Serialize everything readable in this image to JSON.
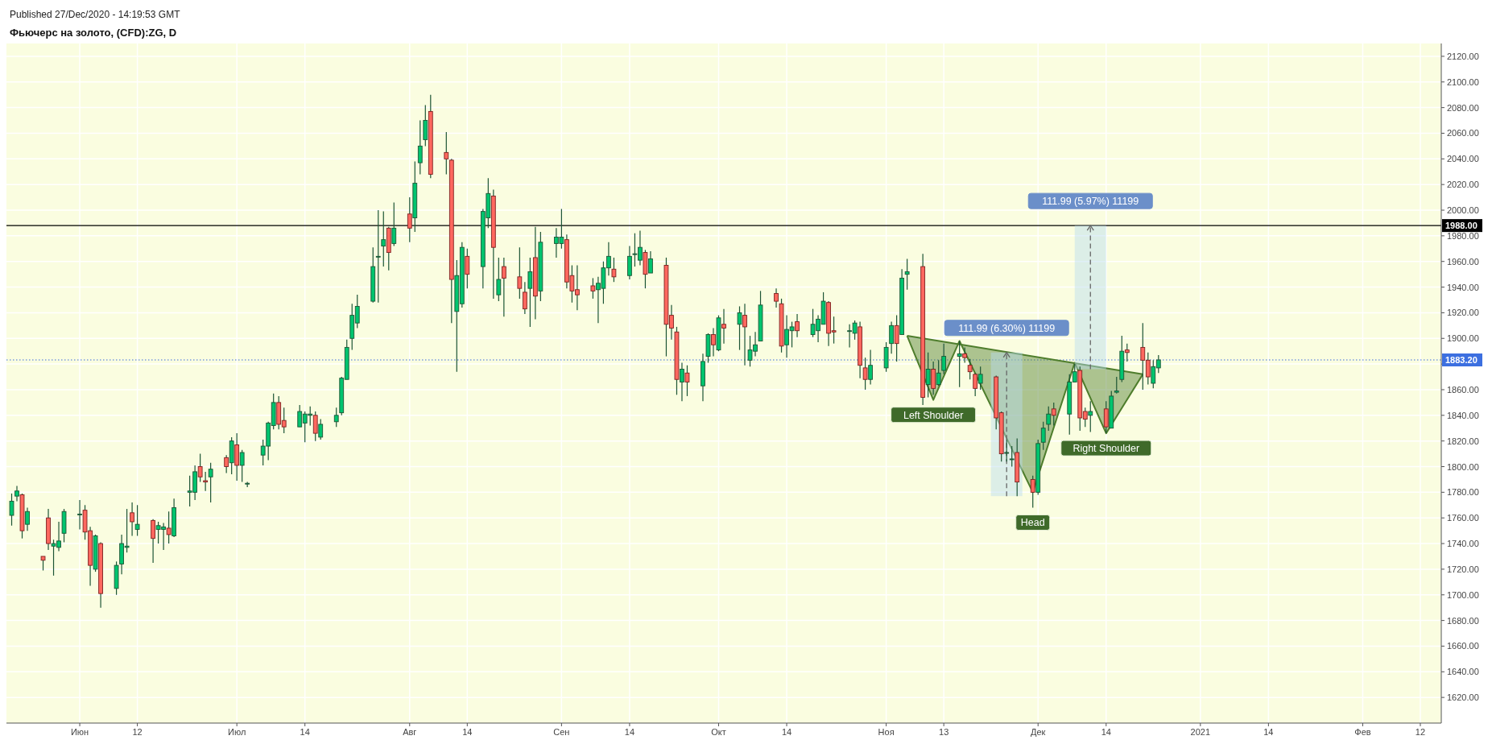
{
  "chart_data": {
    "type": "candlestick",
    "title": "Фьючерс на золото, (CFD):ZG, D",
    "annotations": [
      "Published 27/Dec/2020 - 14:19:53 GMT",
      {
        "text": "Left Shoulder",
        "x": "2020-11-11",
        "y": 1852
      },
      {
        "text": "Head",
        "x": "2020-11-30",
        "y": 1768
      },
      {
        "text": "Right Shoulder",
        "x": "2020-12-14",
        "y": 1826
      },
      {
        "text": "111.99 (6.30%) 11199",
        "x": "2020-11-25",
        "y": 1889
      },
      {
        "text": "111.99 (5.97%) 11199",
        "x": "2020-12-11",
        "y": 1988
      }
    ],
    "x": [
      "2020-05-19",
      "2020-05-20",
      "2020-05-21",
      "2020-05-22",
      "2020-05-25",
      "2020-05-26",
      "2020-05-27",
      "2020-05-28",
      "2020-05-29",
      "2020-06-01",
      "2020-06-02",
      "2020-06-03",
      "2020-06-04",
      "2020-06-05",
      "2020-06-08",
      "2020-06-09",
      "2020-06-10",
      "2020-06-11",
      "2020-06-12",
      "2020-06-15",
      "2020-06-16",
      "2020-06-17",
      "2020-06-18",
      "2020-06-19",
      "2020-06-22",
      "2020-06-23",
      "2020-06-24",
      "2020-06-25",
      "2020-06-26",
      "2020-06-29",
      "2020-06-30",
      "2020-07-01",
      "2020-07-02",
      "2020-07-03",
      "2020-07-06",
      "2020-07-07",
      "2020-07-08",
      "2020-07-09",
      "2020-07-10",
      "2020-07-13",
      "2020-07-14",
      "2020-07-15",
      "2020-07-16",
      "2020-07-17",
      "2020-07-20",
      "2020-07-21",
      "2020-07-22",
      "2020-07-23",
      "2020-07-24",
      "2020-07-27",
      "2020-07-28",
      "2020-07-29",
      "2020-07-30",
      "2020-07-31",
      "2020-08-03",
      "2020-08-04",
      "2020-08-05",
      "2020-08-06",
      "2020-08-07",
      "2020-08-10",
      "2020-08-11",
      "2020-08-12",
      "2020-08-13",
      "2020-08-14",
      "2020-08-17",
      "2020-08-18",
      "2020-08-19",
      "2020-08-20",
      "2020-08-21",
      "2020-08-24",
      "2020-08-25",
      "2020-08-26",
      "2020-08-27",
      "2020-08-28",
      "2020-08-31",
      "2020-09-01",
      "2020-09-02",
      "2020-09-03",
      "2020-09-04",
      "2020-09-07",
      "2020-09-08",
      "2020-09-09",
      "2020-09-10",
      "2020-09-11",
      "2020-09-14",
      "2020-09-15",
      "2020-09-16",
      "2020-09-17",
      "2020-09-18",
      "2020-09-21",
      "2020-09-22",
      "2020-09-23",
      "2020-09-24",
      "2020-09-25",
      "2020-09-28",
      "2020-09-29",
      "2020-09-30",
      "2020-10-01",
      "2020-10-02",
      "2020-10-05",
      "2020-10-06",
      "2020-10-07",
      "2020-10-08",
      "2020-10-09",
      "2020-10-12",
      "2020-10-13",
      "2020-10-14",
      "2020-10-15",
      "2020-10-16",
      "2020-10-19",
      "2020-10-20",
      "2020-10-21",
      "2020-10-22",
      "2020-10-23",
      "2020-10-26",
      "2020-10-27",
      "2020-10-28",
      "2020-10-29",
      "2020-10-30",
      "2020-11-02",
      "2020-11-03",
      "2020-11-04",
      "2020-11-05",
      "2020-11-06",
      "2020-11-09",
      "2020-11-10",
      "2020-11-11",
      "2020-11-12",
      "2020-11-13",
      "2020-11-16",
      "2020-11-17",
      "2020-11-18",
      "2020-11-19",
      "2020-11-20",
      "2020-11-23",
      "2020-11-24",
      "2020-11-25",
      "2020-11-26",
      "2020-11-27",
      "2020-11-30",
      "2020-12-01",
      "2020-12-02",
      "2020-12-03",
      "2020-12-04",
      "2020-12-07",
      "2020-12-08",
      "2020-12-09",
      "2020-12-10",
      "2020-12-11",
      "2020-12-14",
      "2020-12-15",
      "2020-12-16",
      "2020-12-17",
      "2020-12-18",
      "2020-12-21",
      "2020-12-22",
      "2020-12-23",
      "2020-12-24"
    ],
    "ohlc": [
      [
        1762,
        1779,
        1754,
        1773
      ],
      [
        1777,
        1785,
        1773,
        1781
      ],
      [
        1778,
        1779,
        1744,
        1750
      ],
      [
        1755,
        1768,
        1750,
        1765
      ],
      [
        1730,
        1730,
        1719,
        1727
      ],
      [
        1760,
        1767,
        1735,
        1740
      ],
      [
        1738,
        1743,
        1715,
        1740
      ],
      [
        1737,
        1757,
        1734,
        1742
      ],
      [
        1748,
        1767,
        1741,
        1765
      ],
      [
        1763,
        1774,
        1751,
        1763
      ],
      [
        1766,
        1770,
        1743,
        1749
      ],
      [
        1750,
        1753,
        1707,
        1723
      ],
      [
        1720,
        1747,
        1718,
        1746
      ],
      [
        1740,
        1741,
        1690,
        1701
      ],
      [
        1705,
        1726,
        1700,
        1723
      ],
      [
        1724,
        1747,
        1716,
        1740
      ],
      [
        1737,
        1767,
        1733,
        1738
      ],
      [
        1764,
        1772,
        1746,
        1757
      ],
      [
        1751,
        1770,
        1746,
        1755
      ],
      [
        1758,
        1759,
        1725,
        1744
      ],
      [
        1751,
        1757,
        1740,
        1754
      ],
      [
        1751,
        1756,
        1735,
        1753
      ],
      [
        1752,
        1765,
        1740,
        1747
      ],
      [
        1746,
        1775,
        1745,
        1768
      ],
      [
        1780,
        1793,
        1769,
        1781
      ],
      [
        1780,
        1801,
        1774,
        1796
      ],
      [
        1800,
        1810,
        1788,
        1792
      ],
      [
        1789,
        1796,
        1781,
        1788
      ],
      [
        1792,
        1803,
        1772,
        1798
      ],
      [
        1807,
        1809,
        1795,
        1800
      ],
      [
        1803,
        1823,
        1794,
        1820
      ],
      [
        1817,
        1826,
        1789,
        1801
      ],
      [
        1801,
        1813,
        1788,
        1811
      ],
      [
        1787,
        1788,
        1784,
        1787
      ],
      [
        1809,
        1821,
        1801,
        1816
      ],
      [
        1816,
        1835,
        1805,
        1834
      ],
      [
        1832,
        1857,
        1829,
        1850
      ],
      [
        1850,
        1855,
        1829,
        1833
      ],
      [
        1836,
        1846,
        1826,
        1831
      ],
      [
        1831,
        1848,
        1831,
        1843
      ],
      [
        1834,
        1843,
        1819,
        1841
      ],
      [
        1840,
        1847,
        1832,
        1841
      ],
      [
        1840,
        1843,
        1820,
        1826
      ],
      [
        1823,
        1837,
        1821,
        1833
      ],
      [
        1835,
        1846,
        1831,
        1840
      ],
      [
        1842,
        1870,
        1840,
        1869
      ],
      [
        1868,
        1899,
        1868,
        1893
      ],
      [
        1900,
        1927,
        1891,
        1918
      ],
      [
        1912,
        1934,
        1908,
        1925
      ],
      [
        1929,
        1971,
        1928,
        1956
      ],
      [
        1964,
        2000,
        1928,
        1964
      ],
      [
        1972,
        1999,
        1956,
        1977
      ],
      [
        1986,
        1987,
        1953,
        1967
      ],
      [
        1974,
        2006,
        1972,
        1986
      ],
      [
        1997,
        2010,
        1975,
        1986
      ],
      [
        1994,
        2038,
        1983,
        2021
      ],
      [
        2037,
        2070,
        2028,
        2050
      ],
      [
        2055,
        2082,
        2050,
        2070
      ],
      [
        2077,
        2090,
        2025,
        2028
      ],
      [
        2045,
        2061,
        2028,
        2040
      ],
      [
        2039,
        2040,
        1912,
        1946
      ],
      [
        1921,
        1961,
        1874,
        1949
      ],
      [
        1927,
        1975,
        1924,
        1971
      ],
      [
        1964,
        1970,
        1939,
        1950
      ],
      [
        1956,
        2001,
        1939,
        1999
      ],
      [
        1994,
        2025,
        1986,
        2013
      ],
      [
        2011,
        2016,
        1931,
        1971
      ],
      [
        1934,
        1963,
        1929,
        1946
      ],
      [
        1956,
        1963,
        1917,
        1947
      ],
      [
        1948,
        1971,
        1931,
        1939
      ],
      [
        1936,
        1944,
        1919,
        1923
      ],
      [
        1939,
        1963,
        1909,
        1952
      ],
      [
        1963,
        1987,
        1915,
        1933
      ],
      [
        1937,
        1983,
        1929,
        1975
      ],
      [
        1974,
        1986,
        1963,
        1979
      ],
      [
        1974,
        2001,
        1970,
        1979
      ],
      [
        1977,
        1981,
        1939,
        1944
      ],
      [
        1949,
        1957,
        1928,
        1937
      ],
      [
        1938,
        1957,
        1922,
        1934
      ],
      [
        1941,
        1947,
        1931,
        1937
      ],
      [
        1938,
        1948,
        1912,
        1943
      ],
      [
        1939,
        1960,
        1927,
        1955
      ],
      [
        1955,
        1975,
        1949,
        1964
      ],
      [
        1954,
        1963,
        1944,
        1948
      ],
      [
        1949,
        1972,
        1946,
        1964
      ],
      [
        1966,
        1982,
        1956,
        1966
      ],
      [
        1961,
        1984,
        1957,
        1971
      ],
      [
        1967,
        1969,
        1939,
        1950
      ],
      [
        1951,
        1968,
        1951,
        1962
      ],
      [
        1957,
        1963,
        1886,
        1911
      ],
      [
        1918,
        1926,
        1899,
        1908
      ],
      [
        1905,
        1909,
        1856,
        1868
      ],
      [
        1866,
        1881,
        1851,
        1876
      ],
      [
        1873,
        1879,
        1855,
        1866
      ],
      [
        1863,
        1888,
        1851,
        1882
      ],
      [
        1886,
        1904,
        1881,
        1903
      ],
      [
        1903,
        1908,
        1886,
        1895
      ],
      [
        1891,
        1918,
        1890,
        1916
      ],
      [
        1911,
        1923,
        1896,
        1908
      ],
      [
        1911,
        1925,
        1891,
        1920
      ],
      [
        1918,
        1927,
        1879,
        1909
      ],
      [
        1883,
        1902,
        1878,
        1891
      ],
      [
        1890,
        1905,
        1886,
        1895
      ],
      [
        1898,
        1937,
        1898,
        1926
      ],
      [
        1935,
        1939,
        1924,
        1929
      ],
      [
        1927,
        1931,
        1889,
        1894
      ],
      [
        1895,
        1918,
        1885,
        1907
      ],
      [
        1906,
        1913,
        1893,
        1909
      ],
      [
        1913,
        1919,
        1901,
        1906
      ],
      [
        1903,
        1923,
        1901,
        1911
      ],
      [
        1906,
        1918,
        1897,
        1915
      ],
      [
        1911,
        1936,
        1911,
        1929
      ],
      [
        1928,
        1929,
        1894,
        1904
      ],
      [
        1906,
        1917,
        1896,
        1905
      ],
      [
        1906,
        1911,
        1893,
        1906
      ],
      [
        1904,
        1914,
        1899,
        1912
      ],
      [
        1909,
        1913,
        1869,
        1879
      ],
      [
        1877,
        1885,
        1860,
        1868
      ],
      [
        1868,
        1891,
        1864,
        1879
      ],
      [
        1877,
        1897,
        1874,
        1893
      ],
      [
        1896,
        1913,
        1888,
        1910
      ],
      [
        1910,
        1918,
        1882,
        1896
      ],
      [
        1903,
        1954,
        1903,
        1947
      ],
      [
        1950,
        1962,
        1938,
        1952
      ],
      [
        1956,
        1966,
        1848,
        1854
      ],
      [
        1864,
        1889,
        1854,
        1876
      ],
      [
        1876,
        1882,
        1856,
        1861
      ],
      [
        1864,
        1883,
        1863,
        1873
      ],
      [
        1875,
        1896,
        1872,
        1886
      ],
      [
        1886,
        1898,
        1862,
        1888
      ],
      [
        1888,
        1893,
        1881,
        1885
      ],
      [
        1879,
        1884,
        1868,
        1874
      ],
      [
        1872,
        1873,
        1855,
        1861
      ],
      [
        1865,
        1878,
        1860,
        1872
      ],
      [
        1870,
        1871,
        1829,
        1838
      ],
      [
        1842,
        1843,
        1804,
        1810
      ],
      [
        1811,
        1821,
        1804,
        1811
      ],
      [
        1806,
        1816,
        1800,
        1806
      ],
      [
        1811,
        1822,
        1777,
        1788
      ],
      [
        1790,
        1793,
        1768,
        1780
      ],
      [
        1780,
        1821,
        1778,
        1818
      ],
      [
        1819,
        1835,
        1813,
        1830
      ],
      [
        1833,
        1847,
        1828,
        1841
      ],
      [
        1845,
        1850,
        1832,
        1840
      ],
      [
        1841,
        1872,
        1825,
        1866
      ],
      [
        1866,
        1880,
        1866,
        1874
      ],
      [
        1875,
        1878,
        1828,
        1838
      ],
      [
        1843,
        1846,
        1831,
        1837
      ],
      [
        1840,
        1851,
        1827,
        1843
      ],
      [
        1845,
        1851,
        1826,
        1831
      ],
      [
        1830,
        1859,
        1830,
        1855
      ],
      [
        1858,
        1870,
        1857,
        1859
      ],
      [
        1868,
        1902,
        1866,
        1890
      ],
      [
        1891,
        1896,
        1882,
        1889
      ],
      [
        1893,
        1912,
        1860,
        1883
      ],
      [
        1883,
        1889,
        1864,
        1870
      ],
      [
        1865,
        1883,
        1861,
        1878
      ],
      [
        1877,
        1887,
        1873,
        1883.2
      ]
    ],
    "series": [
      {
        "type": "line",
        "color": "#4e7d2c",
        "x": [
          "2020-11-06",
          "2020-11-11",
          "2020-11-16",
          "2020-11-30",
          "2020-12-08",
          "2020-12-14",
          "2020-12-21"
        ],
        "values": [
          1902,
          1852,
          1898,
          1780,
          1881,
          1826,
          1872
        ]
      },
      {
        "type": "line",
        "color": "#666666",
        "line_style": "dashed",
        "x": [
          "2020-11-25",
          "2020-11-25"
        ],
        "values": [
          1777,
          1889
        ]
      },
      {
        "type": "line",
        "color": "#666666",
        "line_style": "dashed",
        "x": [
          "2020-12-11",
          "2020-12-11"
        ],
        "values": [
          1876,
          1988
        ]
      }
    ],
    "ref_lines": [
      {
        "axis": "y",
        "value": 1988,
        "label": "1988.00",
        "color": "#000000",
        "line_style": "solid"
      },
      {
        "axis": "y",
        "value": 1883.2,
        "label": "1883.20",
        "color": "#3c6fe0",
        "line_style": "dotted"
      }
    ],
    "xlim": [
      "2020-05-18",
      "2021-02-16"
    ],
    "xticks": [
      {
        "value": "2020-06-01",
        "label": "Июн"
      },
      {
        "value": "2020-06-12",
        "label": "12"
      },
      {
        "value": "2020-07-01",
        "label": "Июл"
      },
      {
        "value": "2020-07-14",
        "label": "14"
      },
      {
        "value": "2020-08-03",
        "label": "Авг"
      },
      {
        "value": "2020-08-14",
        "label": "14"
      },
      {
        "value": "2020-09-01",
        "label": "Сен"
      },
      {
        "value": "2020-09-14",
        "label": "14"
      },
      {
        "value": "2020-10-01",
        "label": "Окт"
      },
      {
        "value": "2020-10-14",
        "label": "14"
      },
      {
        "value": "2020-11-02",
        "label": "Ноя"
      },
      {
        "value": "2020-11-13",
        "label": "13"
      },
      {
        "value": "2020-12-01",
        "label": "Дек"
      },
      {
        "value": "2020-12-14",
        "label": "14"
      },
      {
        "value": "2021-01-01",
        "label": "2021"
      },
      {
        "value": "2021-01-14",
        "label": "14"
      },
      {
        "value": "2021-02-01",
        "label": "Фев"
      },
      {
        "value": "2021-02-12",
        "label": "12"
      }
    ],
    "ylim": [
      1600,
      2130
    ],
    "yticks": [
      {
        "value": 1620,
        "label": "1620.00"
      },
      {
        "value": 1640,
        "label": "1640.00"
      },
      {
        "value": 1660,
        "label": "1660.00"
      },
      {
        "value": 1680,
        "label": "1680.00"
      },
      {
        "value": 1700,
        "label": "1700.00"
      },
      {
        "value": 1720,
        "label": "1720.00"
      },
      {
        "value": 1740,
        "label": "1740.00"
      },
      {
        "value": 1760,
        "label": "1760.00"
      },
      {
        "value": 1780,
        "label": "1780.00"
      },
      {
        "value": 1800,
        "label": "1800.00"
      },
      {
        "value": 1820,
        "label": "1820.00"
      },
      {
        "value": 1840,
        "label": "1840.00"
      },
      {
        "value": 1860,
        "label": "1860.00"
      },
      {
        "value": 1880,
        "label": null
      },
      {
        "value": 1900,
        "label": "1900.00"
      },
      {
        "value": 1920,
        "label": "1920.00"
      },
      {
        "value": 1940,
        "label": "1940.00"
      },
      {
        "value": 1960,
        "label": "1960.00"
      },
      {
        "value": 1980,
        "label": "1980.00"
      },
      {
        "value": 2000,
        "label": "2000.00"
      },
      {
        "value": 2020,
        "label": "2020.00"
      },
      {
        "value": 2040,
        "label": "2040.00"
      },
      {
        "value": 2060,
        "label": "2060.00"
      },
      {
        "value": 2080,
        "label": "2080.00"
      },
      {
        "value": 2100,
        "label": "2100.00"
      },
      {
        "value": 2120,
        "label": "2120.00"
      }
    ],
    "grid": true
  }
}
